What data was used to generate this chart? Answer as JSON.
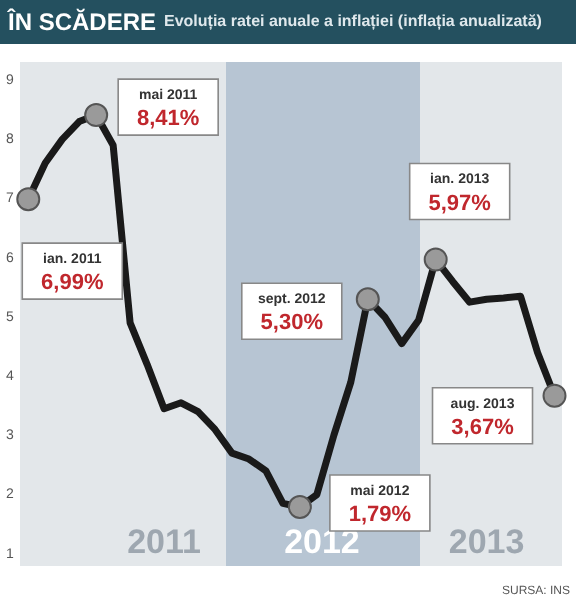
{
  "chart_data": {
    "type": "line",
    "title": "ÎN SCĂDERE",
    "subtitle": "Evoluția ratei anuale a inflației (inflația anualizată)",
    "categories": [
      null,
      null,
      null,
      null,
      null,
      null,
      null,
      null,
      null,
      null,
      null,
      null,
      null,
      null,
      null,
      null,
      null,
      null,
      null,
      null,
      null,
      null,
      null,
      null,
      null,
      null,
      null,
      null,
      null,
      null,
      null,
      null
    ],
    "series": [
      {
        "color": "#1a1a1a",
        "values": [
          6.99,
          7.6,
          8.0,
          8.3,
          8.41,
          7.9,
          4.9,
          4.2,
          3.45,
          3.55,
          3.4,
          3.1,
          2.7,
          2.6,
          2.4,
          1.85,
          1.79,
          2.0,
          3.0,
          3.9,
          5.3,
          5.0,
          4.55,
          4.95,
          5.97,
          5.6,
          5.25,
          5.3,
          5.32,
          5.35,
          4.4,
          3.67
        ],
        "value_labels": [
          "6,99%",
          null,
          null,
          null,
          "8,41%",
          null,
          null,
          null,
          null,
          null,
          null,
          null,
          null,
          null,
          null,
          null,
          "1,79%",
          null,
          null,
          null,
          "5,30%",
          null,
          null,
          null,
          "5,97%",
          null,
          null,
          null,
          null,
          null,
          null,
          "3,67%"
        ]
      }
    ],
    "ylim": [
      0.8,
      9.3
    ],
    "yticks": [
      1,
      2,
      3,
      4,
      5,
      6,
      7,
      8,
      9
    ],
    "tick_labels": "y",
    "grid": false,
    "legend": false,
    "line_style": "solid",
    "annotations": [
      "ian. 2011",
      "mai 2011",
      "mai 2012",
      "sept. 2012",
      "ian. 2013",
      "aug. 2013",
      "2011",
      "2012",
      "2013",
      "SURSA: INS"
    ]
  }
}
